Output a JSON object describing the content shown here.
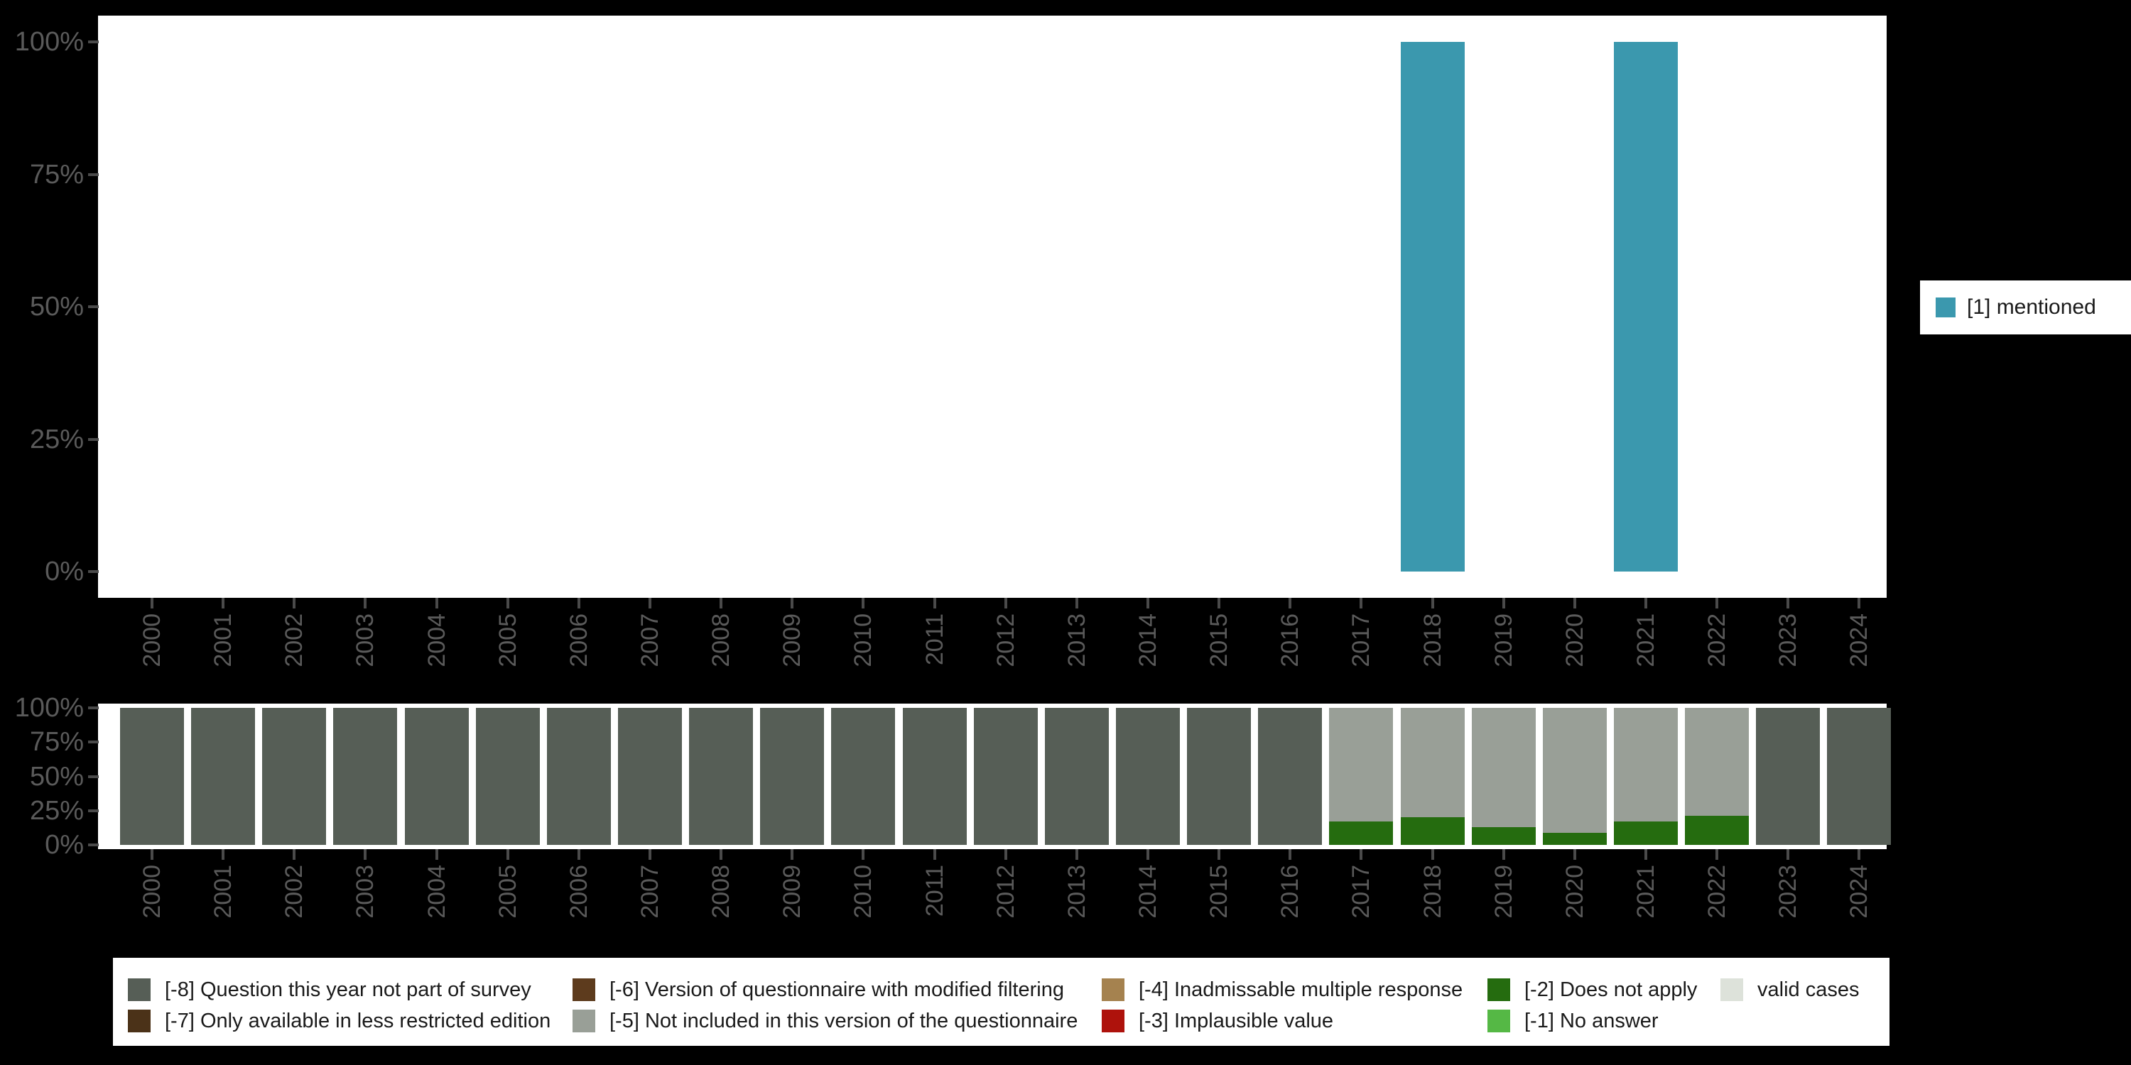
{
  "colors": {
    "background": "#000000",
    "plot_background": "#ffffff",
    "axis_text": "#5a5a5a",
    "tick_mark": "#4a4a4a",
    "legend_text": "#1a1a1a",
    "legend_background": "#ffffff"
  },
  "codes": {
    "1": {
      "label": "[1] mentioned",
      "color": "#3b98ae"
    },
    "-8": {
      "label": "[-8] Question this year not part of survey",
      "color": "#565e56"
    },
    "-7": {
      "label": "[-7] Only available in less restricted edition",
      "color": "#4b3218"
    },
    "-6": {
      "label": "[-6] Version of questionnaire with modified filtering",
      "color": "#5d3b1d"
    },
    "-5": {
      "label": "[-5] Not included in this version of the questionnaire",
      "color": "#999f97"
    },
    "-4": {
      "label": "[-4] Inadmissable multiple response",
      "color": "#a5824f"
    },
    "-3": {
      "label": "[-3] Implausible value",
      "color": "#ae120c"
    },
    "-2": {
      "label": "[-2] Does not apply",
      "color": "#256c0f"
    },
    "-1": {
      "label": "[-1] No answer",
      "color": "#55b845"
    },
    "valid": {
      "label": "valid cases",
      "color": "#dde2da"
    }
  },
  "legend_right": {
    "items": [
      {
        "key": "1",
        "label": "[1] mentioned",
        "color": "#3b98ae"
      }
    ]
  },
  "legend_bottom": {
    "columns": [
      [
        "-8",
        "-7"
      ],
      [
        "-6",
        "-5"
      ],
      [
        "-4",
        "-3"
      ],
      [
        "-2",
        "-1"
      ],
      [
        "valid"
      ]
    ]
  },
  "chart_data": [
    {
      "name": "value-distribution-over-years",
      "type": "bar",
      "title": "",
      "categories": [
        "2000",
        "2001",
        "2002",
        "2003",
        "2004",
        "2005",
        "2006",
        "2007",
        "2008",
        "2009",
        "2010",
        "2011",
        "2012",
        "2013",
        "2014",
        "2015",
        "2016",
        "2017",
        "2018",
        "2019",
        "2020",
        "2021",
        "2022",
        "2023",
        "2024"
      ],
      "y_tick_labels": [
        "100%",
        "75%",
        "50%",
        "25%",
        "0%"
      ],
      "y_tick_values": [
        100,
        75,
        50,
        25,
        0
      ],
      "ylim": [
        0,
        100
      ],
      "grid": false,
      "legend_position": "right",
      "series": [
        {
          "key": "1",
          "name": "[1] mentioned",
          "color": "#3b98ae",
          "values": [
            null,
            null,
            null,
            null,
            null,
            null,
            null,
            null,
            null,
            null,
            null,
            null,
            null,
            null,
            null,
            null,
            null,
            null,
            100,
            null,
            null,
            100,
            null,
            null,
            null
          ]
        }
      ]
    },
    {
      "name": "missing-values-over-years",
      "type": "stacked-bar-100",
      "title": "",
      "categories": [
        "2000",
        "2001",
        "2002",
        "2003",
        "2004",
        "2005",
        "2006",
        "2007",
        "2008",
        "2009",
        "2010",
        "2011",
        "2012",
        "2013",
        "2014",
        "2015",
        "2016",
        "2017",
        "2018",
        "2019",
        "2020",
        "2021",
        "2022",
        "2023",
        "2024"
      ],
      "y_tick_labels": [
        "100%",
        "75%",
        "50%",
        "25%",
        "0%"
      ],
      "y_tick_values": [
        100,
        75,
        50,
        25,
        0
      ],
      "ylim": [
        0,
        100
      ],
      "grid": false,
      "legend_position": "bottom",
      "bars": [
        {
          "year": "2000",
          "segments": [
            [
              "-8",
              100
            ]
          ]
        },
        {
          "year": "2001",
          "segments": [
            [
              "-8",
              100
            ]
          ]
        },
        {
          "year": "2002",
          "segments": [
            [
              "-8",
              100
            ]
          ]
        },
        {
          "year": "2003",
          "segments": [
            [
              "-8",
              100
            ]
          ]
        },
        {
          "year": "2004",
          "segments": [
            [
              "-8",
              100
            ]
          ]
        },
        {
          "year": "2005",
          "segments": [
            [
              "-8",
              100
            ]
          ]
        },
        {
          "year": "2006",
          "segments": [
            [
              "-8",
              100
            ]
          ]
        },
        {
          "year": "2007",
          "segments": [
            [
              "-8",
              100
            ]
          ]
        },
        {
          "year": "2008",
          "segments": [
            [
              "-8",
              100
            ]
          ]
        },
        {
          "year": "2009",
          "segments": [
            [
              "-8",
              100
            ]
          ]
        },
        {
          "year": "2010",
          "segments": [
            [
              "-8",
              100
            ]
          ]
        },
        {
          "year": "2011",
          "segments": [
            [
              "-8",
              100
            ]
          ]
        },
        {
          "year": "2012",
          "segments": [
            [
              "-8",
              100
            ]
          ]
        },
        {
          "year": "2013",
          "segments": [
            [
              "-8",
              100
            ]
          ]
        },
        {
          "year": "2014",
          "segments": [
            [
              "-8",
              100
            ]
          ]
        },
        {
          "year": "2015",
          "segments": [
            [
              "-8",
              100
            ]
          ]
        },
        {
          "year": "2016",
          "segments": [
            [
              "-8",
              100
            ]
          ]
        },
        {
          "year": "2017",
          "segments": [
            [
              "-5",
              83
            ],
            [
              "-2",
              17
            ]
          ]
        },
        {
          "year": "2018",
          "segments": [
            [
              "-5",
              80
            ],
            [
              "-2",
              20
            ]
          ]
        },
        {
          "year": "2019",
          "segments": [
            [
              "-5",
              87
            ],
            [
              "-2",
              13
            ]
          ]
        },
        {
          "year": "2020",
          "segments": [
            [
              "-5",
              91
            ],
            [
              "-2",
              9
            ]
          ]
        },
        {
          "year": "2021",
          "segments": [
            [
              "-5",
              83
            ],
            [
              "-2",
              17
            ]
          ]
        },
        {
          "year": "2022",
          "segments": [
            [
              "-5",
              79
            ],
            [
              "-2",
              21
            ]
          ]
        },
        {
          "year": "2023",
          "segments": [
            [
              "-8",
              100
            ]
          ]
        },
        {
          "year": "2024",
          "segments": [
            [
              "-8",
              100
            ]
          ]
        }
      ]
    }
  ]
}
